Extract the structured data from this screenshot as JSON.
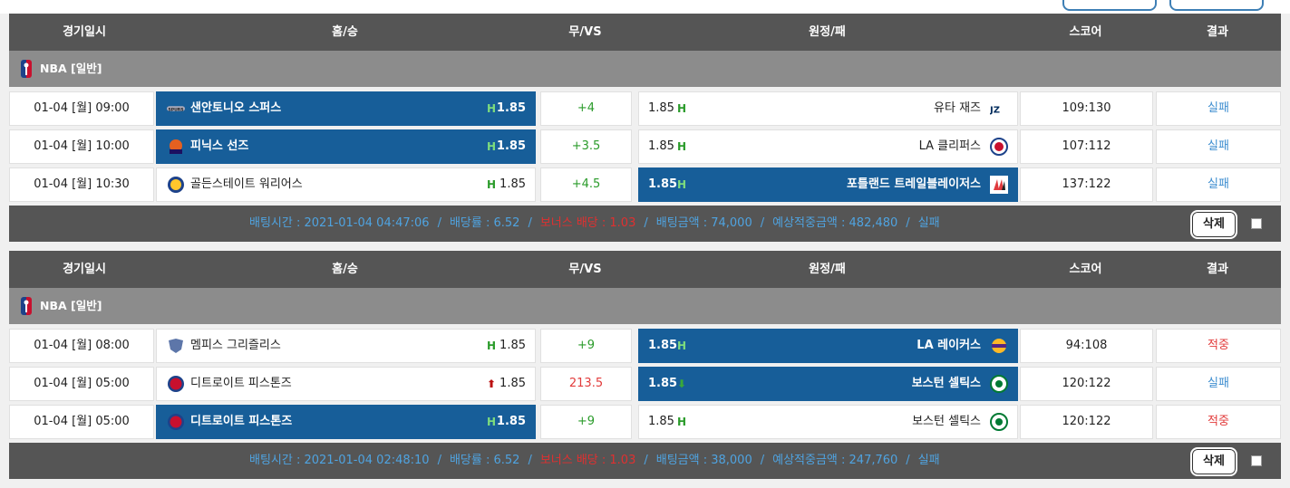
{
  "header": {
    "date": "경기일시",
    "home": "홈/승",
    "draw": "무/VS",
    "away": "원정/패",
    "score": "스코어",
    "result": "결과"
  },
  "bets": [
    {
      "league": "NBA [일반]",
      "games": [
        {
          "date": "01-04 [월] 09:00",
          "home": "샌안토니오 스퍼스",
          "home_ind": "H",
          "home_odds": "1.85",
          "home_sel": true,
          "home_icon": "spurs-logo-icon",
          "draw": "+4",
          "draw_color": "green",
          "away": "유타 재즈",
          "away_ind": "H",
          "away_odds": "1.85",
          "away_sel": false,
          "away_icon": "jazz-logo-icon",
          "score": "109:130",
          "result": "실패",
          "result_type": "fail"
        },
        {
          "date": "01-04 [월] 10:00",
          "home": "피닉스 선즈",
          "home_ind": "H",
          "home_odds": "1.85",
          "home_sel": true,
          "home_icon": "suns-logo-icon",
          "draw": "+3.5",
          "draw_color": "green",
          "away": "LA 클리퍼스",
          "away_ind": "H",
          "away_odds": "1.85",
          "away_sel": false,
          "away_icon": "clippers-logo-icon",
          "score": "107:112",
          "result": "실패",
          "result_type": "fail"
        },
        {
          "date": "01-04 [월] 10:30",
          "home": "골든스테이트 워리어스",
          "home_ind": "H",
          "home_odds": "1.85",
          "home_sel": false,
          "home_icon": "warriors-logo-icon",
          "draw": "+4.5",
          "draw_color": "green",
          "away": "포틀랜드 트레일블레이저스",
          "away_ind": "H",
          "away_odds": "1.85",
          "away_sel": true,
          "away_icon": "blazers-logo-icon",
          "score": "137:122",
          "result": "실패",
          "result_type": "fail"
        }
      ],
      "summary": {
        "time": "배팅시간 : 2021-01-04 04:47:06",
        "rate": "배당률 : 6.52",
        "bonus": "보너스 배당 : 1.03",
        "amount": "배팅금액 : 74,000",
        "expected": "예상적중금액 : 482,480",
        "status": "실패"
      },
      "delete_label": "삭제"
    },
    {
      "league": "NBA [일반]",
      "games": [
        {
          "date": "01-04 [월] 08:00",
          "home": "멤피스 그리즐리스",
          "home_ind": "H",
          "home_odds": "1.85",
          "home_sel": false,
          "home_icon": "grizzlies-logo-icon",
          "draw": "+9",
          "draw_color": "green",
          "away": "LA 레이커스",
          "away_ind": "H",
          "away_odds": "1.85",
          "away_sel": true,
          "away_icon": "lakers-logo-icon",
          "score": "94:108",
          "result": "적중",
          "result_type": "hit"
        },
        {
          "date": "01-04 [월] 05:00",
          "home": "디트로이트 피스톤즈",
          "home_ind": "up",
          "home_odds": "1.85",
          "home_sel": false,
          "home_icon": "pistons-logo-icon",
          "draw": "213.5",
          "draw_color": "red",
          "away": "보스턴 셀틱스",
          "away_ind": "down",
          "away_odds": "1.85",
          "away_sel": true,
          "away_icon": "celtics-logo-icon",
          "score": "120:122",
          "result": "실패",
          "result_type": "fail"
        },
        {
          "date": "01-04 [월] 05:00",
          "home": "디트로이트 피스톤즈",
          "home_ind": "H",
          "home_odds": "1.85",
          "home_sel": true,
          "home_icon": "pistons-logo-icon",
          "draw": "+9",
          "draw_color": "green",
          "away": "보스턴 셀틱스",
          "away_ind": "H",
          "away_odds": "1.85",
          "away_sel": false,
          "away_icon": "celtics-logo-icon",
          "score": "120:122",
          "result": "적중",
          "result_type": "hit"
        }
      ],
      "summary": {
        "time": "배팅시간 : 2021-01-04 02:48:10",
        "rate": "배당률 : 6.52",
        "bonus": "보너스 배당 : 1.03",
        "amount": "배팅금액 : 38,000",
        "expected": "예상적중금액 : 247,760",
        "status": "실패"
      },
      "delete_label": "삭제"
    }
  ]
}
